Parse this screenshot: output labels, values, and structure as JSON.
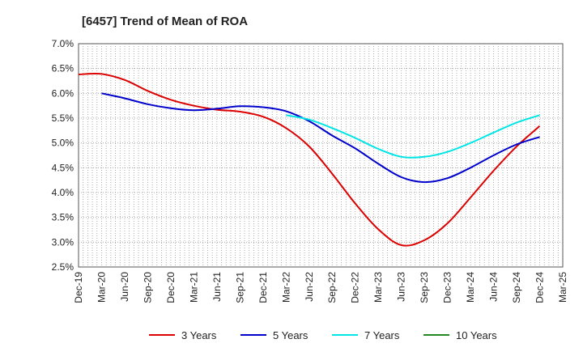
{
  "chart_data": {
    "type": "line",
    "title": "[6457]  Trend of Mean of ROA",
    "xlabel": "",
    "ylabel": "",
    "x_categories": [
      "Dec-19",
      "Mar-20",
      "Jun-20",
      "Sep-20",
      "Dec-20",
      "Mar-21",
      "Jun-21",
      "Sep-21",
      "Dec-21",
      "Mar-22",
      "Jun-22",
      "Sep-22",
      "Dec-22",
      "Mar-23",
      "Jun-23",
      "Sep-23",
      "Dec-23",
      "Mar-24",
      "Jun-24",
      "Sep-24",
      "Dec-24",
      "Mar-25"
    ],
    "y_ticks": [
      "2.5%",
      "3.0%",
      "3.5%",
      "4.0%",
      "4.5%",
      "5.0%",
      "5.5%",
      "6.0%",
      "6.5%",
      "7.0%"
    ],
    "ylim": [
      2.5,
      7.0
    ],
    "grid": true,
    "legend_position": "bottom",
    "series": [
      {
        "name": "3 Years",
        "color": "#dd0000",
        "x_index": [
          0,
          1,
          2,
          3,
          4,
          5,
          6,
          7,
          8,
          9,
          10,
          11,
          12,
          13,
          14,
          15,
          16,
          17,
          18,
          19,
          20
        ],
        "values": [
          6.38,
          6.39,
          6.27,
          6.05,
          5.87,
          5.75,
          5.67,
          5.63,
          5.53,
          5.3,
          4.93,
          4.38,
          3.78,
          3.26,
          2.94,
          3.04,
          3.38,
          3.9,
          4.44,
          4.93,
          5.34
        ]
      },
      {
        "name": "5 Years",
        "color": "#0000cc",
        "x_index": [
          1,
          2,
          3,
          4,
          5,
          6,
          7,
          8,
          9,
          10,
          11,
          12,
          13,
          14,
          15,
          16,
          17,
          18,
          19,
          20
        ],
        "values": [
          6.0,
          5.9,
          5.78,
          5.7,
          5.66,
          5.69,
          5.74,
          5.72,
          5.64,
          5.44,
          5.15,
          4.89,
          4.58,
          4.31,
          4.21,
          4.29,
          4.5,
          4.75,
          4.97,
          5.12
        ]
      },
      {
        "name": "7 Years",
        "color": "#00e5e5",
        "x_index": [
          9,
          10,
          11,
          12,
          13,
          14,
          15,
          16,
          17,
          18,
          19,
          20
        ],
        "values": [
          5.56,
          5.47,
          5.3,
          5.1,
          4.88,
          4.72,
          4.72,
          4.82,
          5.0,
          5.21,
          5.41,
          5.56
        ]
      },
      {
        "name": "10 Years",
        "color": "#228822",
        "x_index": [],
        "values": []
      }
    ]
  }
}
